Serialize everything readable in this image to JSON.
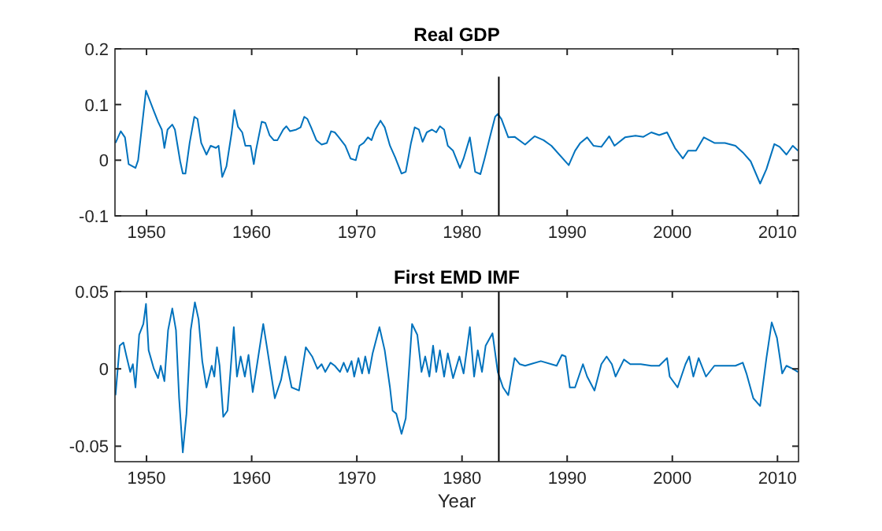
{
  "chart_data": [
    {
      "type": "line",
      "title": "Real GDP",
      "xlim": [
        1947,
        2012
      ],
      "xticks": [
        1950,
        1960,
        1970,
        1980,
        1990,
        2000,
        2010
      ],
      "ylim": [
        -0.1,
        0.2
      ],
      "yticks": [
        -0.1,
        0,
        0.1,
        0.2
      ],
      "grid": false,
      "series": [
        {
          "color": "#0072bd",
          "x": [
            1947.05,
            1947.55,
            1947.95,
            1948.3,
            1948.95,
            1949.2,
            1949.95,
            1950.7,
            1951.1,
            1951.45,
            1951.7,
            1952,
            1952.45,
            1952.7,
            1953.2,
            1953.45,
            1953.7,
            1954.1,
            1954.55,
            1954.85,
            1955.2,
            1955.7,
            1956.1,
            1956.6,
            1956.85,
            1957.2,
            1957.6,
            1958.1,
            1958.35,
            1958.7,
            1959.1,
            1959.4,
            1959.9,
            1960.2,
            1960.4,
            1960.95,
            1961.3,
            1961.7,
            1962.1,
            1962.45,
            1963,
            1963.3,
            1963.65,
            1964.25,
            1964.65,
            1965,
            1965.3,
            1965.65,
            1966.15,
            1966.65,
            1967.15,
            1967.55,
            1967.9,
            1968.25,
            1968.9,
            1969.4,
            1969.9,
            1970.25,
            1970.65,
            1971.05,
            1971.4,
            1971.75,
            1972.25,
            1972.65,
            1973.15,
            1973.65,
            1974.25,
            1974.65,
            1975.15,
            1975.5,
            1975.9,
            1976.25,
            1976.65,
            1977.15,
            1977.55,
            1977.9,
            1978.3,
            1978.65,
            1979.15,
            1979.8,
            1980.15,
            1980.75,
            1981.25,
            1981.75,
            1982.15,
            1982.65,
            1983.15,
            1983.4,
            1983.75,
            1984.4,
            1985,
            1986,
            1986.9,
            1987.75,
            1988.5,
            1990.15,
            1990.75,
            1991.25,
            1991.9,
            1992.5,
            1993.25,
            1994,
            1994.5,
            1995.5,
            1996.5,
            1997.25,
            1998,
            1998.75,
            1999.5,
            2000.25,
            2001,
            2001.5,
            2002.25,
            2003,
            2004,
            2005,
            2006,
            2006.7,
            2007.45,
            2008.35,
            2008.95,
            2009.7,
            2010.2,
            2010.85,
            2011.45,
            2011.95
          ],
          "values": [
            0.031,
            0.052,
            0.041,
            -0.007,
            -0.014,
            0,
            0.125,
            0.088,
            0.069,
            0.055,
            0.022,
            0.055,
            0.064,
            0.055,
            -0.002,
            -0.024,
            -0.024,
            0.031,
            0.078,
            0.074,
            0.031,
            0.01,
            0.026,
            0.022,
            0.026,
            -0.03,
            -0.011,
            0.05,
            0.09,
            0.06,
            0.05,
            0.026,
            0.026,
            -0.007,
            0.017,
            0.069,
            0.067,
            0.045,
            0.036,
            0.036,
            0.055,
            0.061,
            0.052,
            0.055,
            0.059,
            0.078,
            0.074,
            0.059,
            0.036,
            0.028,
            0.031,
            0.052,
            0.05,
            0.042,
            0.026,
            0.003,
            0,
            0.026,
            0.031,
            0.041,
            0.036,
            0.055,
            0.071,
            0.059,
            0.026,
            0.005,
            -0.024,
            -0.021,
            0.031,
            0.059,
            0.055,
            0.033,
            0.05,
            0.055,
            0.05,
            0.061,
            0.055,
            0.026,
            0.017,
            -0.014,
            0.003,
            0.041,
            -0.021,
            -0.025,
            0.003,
            0.041,
            0.078,
            0.083,
            0.074,
            0.041,
            0.042,
            0.028,
            0.043,
            0.036,
            0.026,
            -0.009,
            0.017,
            0.031,
            0.041,
            0.026,
            0.024,
            0.043,
            0.026,
            0.041,
            0.044,
            0.042,
            0.05,
            0.045,
            0.05,
            0.022,
            0.003,
            0.017,
            0.017,
            0.041,
            0.031,
            0.031,
            0.026,
            0.014,
            -0.002,
            -0.042,
            -0.016,
            0.029,
            0.024,
            0.01,
            0.026,
            0.017
          ]
        },
        {
          "color": "#000000",
          "x": [
            1983.5,
            1983.5
          ],
          "values": [
            -0.1,
            0.15
          ]
        }
      ]
    },
    {
      "type": "line",
      "title": "First EMD IMF",
      "xlabel": "Year",
      "xlim": [
        1947,
        2012
      ],
      "xticks": [
        1950,
        1960,
        1970,
        1980,
        1990,
        2000,
        2010
      ],
      "ylim": [
        -0.06,
        0.05
      ],
      "yticks": [
        -0.05,
        0,
        0.05
      ],
      "grid": false,
      "ref_lines": [
        {
          "axis": "x",
          "value": 1983.5,
          "color": "#000000"
        }
      ],
      "series": [
        {
          "color": "#0072bd",
          "x": [
            1947.05,
            1947.45,
            1947.8,
            1948.1,
            1948.45,
            1948.7,
            1948.95,
            1949.3,
            1949.7,
            1949.95,
            1950.2,
            1950.7,
            1951.1,
            1951.35,
            1951.7,
            1952.05,
            1952.45,
            1952.8,
            1953.1,
            1953.45,
            1953.8,
            1954.2,
            1954.6,
            1954.95,
            1955.3,
            1955.7,
            1956.2,
            1956.45,
            1956.7,
            1956.95,
            1957.3,
            1957.7,
            1958.3,
            1958.6,
            1958.95,
            1959.35,
            1959.7,
            1960.1,
            1960.45,
            1961.1,
            1961.45,
            1962.2,
            1962.8,
            1963.2,
            1963.8,
            1964.5,
            1965.15,
            1965.75,
            1966.25,
            1966.65,
            1967,
            1967.5,
            1967.9,
            1968.4,
            1968.75,
            1969.1,
            1969.5,
            1969.75,
            1970.15,
            1970.5,
            1970.8,
            1971.15,
            1971.5,
            1972.15,
            1972.65,
            1973.15,
            1973.4,
            1973.75,
            1974.25,
            1974.65,
            1975.25,
            1975.75,
            1976.15,
            1976.5,
            1976.9,
            1977.25,
            1977.55,
            1977.9,
            1978.3,
            1978.65,
            1979.15,
            1979.75,
            1980.15,
            1980.75,
            1981.15,
            1981.5,
            1981.9,
            1982.25,
            1982.9,
            1983.4,
            1983.9,
            1984.4,
            1985,
            1985.5,
            1986,
            1986.5,
            1987.5,
            1989,
            1989.5,
            1989.85,
            1990.25,
            1990.75,
            1991.5,
            1991.9,
            1992.6,
            1993.25,
            1993.75,
            1994.25,
            1994.6,
            1995.4,
            1996,
            1997,
            1998,
            1998.75,
            1999.5,
            1999.75,
            2000.5,
            2001.25,
            2001.6,
            2002,
            2002.5,
            2003.2,
            2004,
            2005,
            2006,
            2006.7,
            2007.05,
            2007.7,
            2008.35,
            2008.95,
            2009.45,
            2009.95,
            2010.45,
            2010.85,
            2011.45,
            2011.95
          ],
          "values": [
            -0.017,
            0.015,
            0.017,
            0.008,
            -0.002,
            0.003,
            -0.012,
            0.022,
            0.029,
            0.042,
            0.012,
            0,
            -0.006,
            0.002,
            -0.008,
            0.025,
            0.039,
            0.025,
            -0.019,
            -0.054,
            -0.029,
            0.025,
            0.043,
            0.032,
            0.005,
            -0.012,
            0.002,
            -0.005,
            0.014,
            0.002,
            -0.031,
            -0.027,
            0.027,
            -0.005,
            0.008,
            -0.005,
            0.009,
            -0.015,
            0,
            0.029,
            0.014,
            -0.019,
            -0.007,
            0.008,
            -0.012,
            -0.014,
            0.014,
            0.008,
            0,
            0.003,
            -0.002,
            0.004,
            0.002,
            -0.002,
            0.004,
            -0.002,
            0.005,
            -0.005,
            0.007,
            -0.003,
            0.008,
            -0.003,
            0.01,
            0.027,
            0.012,
            -0.012,
            -0.027,
            -0.029,
            -0.042,
            -0.032,
            0.029,
            0.022,
            -0.002,
            0.008,
            -0.005,
            0.015,
            -0.002,
            0.012,
            -0.005,
            0.01,
            -0.006,
            0.008,
            -0.003,
            0.027,
            -0.005,
            0.012,
            -0.002,
            0.015,
            0.023,
            -0.002,
            -0.012,
            -0.017,
            0.007,
            0.003,
            0.002,
            0.003,
            0.005,
            0.002,
            0.009,
            0.008,
            -0.012,
            -0.012,
            0.003,
            -0.005,
            -0.014,
            0.003,
            0.008,
            0.003,
            -0.005,
            0.006,
            0.003,
            0.003,
            0.002,
            0.002,
            0.007,
            -0.005,
            -0.012,
            0.003,
            0.008,
            -0.005,
            0.007,
            -0.005,
            0.002,
            0.002,
            0.002,
            0.004,
            -0.003,
            -0.019,
            -0.024,
            0.007,
            0.03,
            0.02,
            -0.003,
            0.002,
            0,
            -0.002
          ]
        }
      ]
    }
  ]
}
